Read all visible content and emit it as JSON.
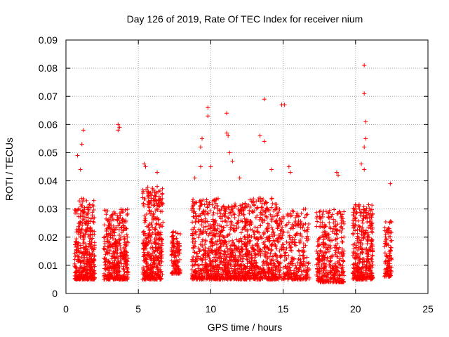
{
  "chart_data": {
    "type": "scatter",
    "title": "Day 126 of 2019, Rate Of TEC Index for receiver nium",
    "xlabel": "GPS time / hours",
    "ylabel": "ROTI / TECUs",
    "xlim": [
      0,
      25
    ],
    "ylim": [
      0,
      0.09
    ],
    "x_ticks": [
      "0",
      "5",
      "10",
      "15",
      "20",
      "25"
    ],
    "y_ticks": [
      "0",
      "0.01",
      "0.02",
      "0.03",
      "0.04",
      "0.05",
      "0.06",
      "0.07",
      "0.08",
      "0.09"
    ],
    "grid": true,
    "marker": "plus",
    "color": "#ff0000",
    "clusters": [
      {
        "x_range": [
          0.6,
          2.0
        ],
        "y_range": [
          0.005,
          0.034
        ],
        "count": 420
      },
      {
        "x_range": [
          2.6,
          4.3
        ],
        "y_range": [
          0.005,
          0.03
        ],
        "count": 420
      },
      {
        "x_range": [
          5.3,
          6.7
        ],
        "y_range": [
          0.005,
          0.038
        ],
        "count": 420
      },
      {
        "x_range": [
          7.3,
          7.9
        ],
        "y_range": [
          0.007,
          0.022
        ],
        "count": 120
      },
      {
        "x_range": [
          8.7,
          10.7
        ],
        "y_range": [
          0.005,
          0.034
        ],
        "count": 480
      },
      {
        "x_range": [
          10.7,
          12.6
        ],
        "y_range": [
          0.005,
          0.032
        ],
        "count": 440
      },
      {
        "x_range": [
          12.6,
          14.6
        ],
        "y_range": [
          0.005,
          0.034
        ],
        "count": 440
      },
      {
        "x_range": [
          14.6,
          16.8
        ],
        "y_range": [
          0.005,
          0.03
        ],
        "count": 320
      },
      {
        "x_range": [
          17.3,
          19.2
        ],
        "y_range": [
          0.004,
          0.03
        ],
        "count": 380
      },
      {
        "x_range": [
          19.8,
          21.2
        ],
        "y_range": [
          0.005,
          0.032
        ],
        "count": 380
      },
      {
        "x_range": [
          22.0,
          22.5
        ],
        "y_range": [
          0.006,
          0.026
        ],
        "count": 110
      }
    ],
    "outliers": [
      {
        "x": 0.8,
        "y": 0.049
      },
      {
        "x": 1.2,
        "y": 0.058
      },
      {
        "x": 1.1,
        "y": 0.053
      },
      {
        "x": 1.0,
        "y": 0.044
      },
      {
        "x": 3.6,
        "y": 0.06
      },
      {
        "x": 3.7,
        "y": 0.059
      },
      {
        "x": 3.6,
        "y": 0.058
      },
      {
        "x": 5.4,
        "y": 0.046
      },
      {
        "x": 5.5,
        "y": 0.045
      },
      {
        "x": 6.3,
        "y": 0.043
      },
      {
        "x": 8.9,
        "y": 0.041
      },
      {
        "x": 9.4,
        "y": 0.055
      },
      {
        "x": 9.3,
        "y": 0.052
      },
      {
        "x": 9.3,
        "y": 0.045
      },
      {
        "x": 9.8,
        "y": 0.066
      },
      {
        "x": 9.8,
        "y": 0.063
      },
      {
        "x": 10.0,
        "y": 0.045
      },
      {
        "x": 11.1,
        "y": 0.064
      },
      {
        "x": 11.1,
        "y": 0.057
      },
      {
        "x": 11.2,
        "y": 0.056
      },
      {
        "x": 11.3,
        "y": 0.05
      },
      {
        "x": 11.5,
        "y": 0.047
      },
      {
        "x": 12.0,
        "y": 0.041
      },
      {
        "x": 13.4,
        "y": 0.056
      },
      {
        "x": 13.7,
        "y": 0.069
      },
      {
        "x": 13.7,
        "y": 0.054
      },
      {
        "x": 14.2,
        "y": 0.044
      },
      {
        "x": 14.9,
        "y": 0.067
      },
      {
        "x": 15.1,
        "y": 0.067
      },
      {
        "x": 15.4,
        "y": 0.045
      },
      {
        "x": 15.5,
        "y": 0.043
      },
      {
        "x": 18.7,
        "y": 0.043
      },
      {
        "x": 18.8,
        "y": 0.042
      },
      {
        "x": 20.6,
        "y": 0.081
      },
      {
        "x": 20.6,
        "y": 0.071
      },
      {
        "x": 20.7,
        "y": 0.061
      },
      {
        "x": 20.7,
        "y": 0.055
      },
      {
        "x": 20.6,
        "y": 0.052
      },
      {
        "x": 20.4,
        "y": 0.046
      },
      {
        "x": 20.6,
        "y": 0.044
      },
      {
        "x": 22.4,
        "y": 0.039
      }
    ]
  }
}
